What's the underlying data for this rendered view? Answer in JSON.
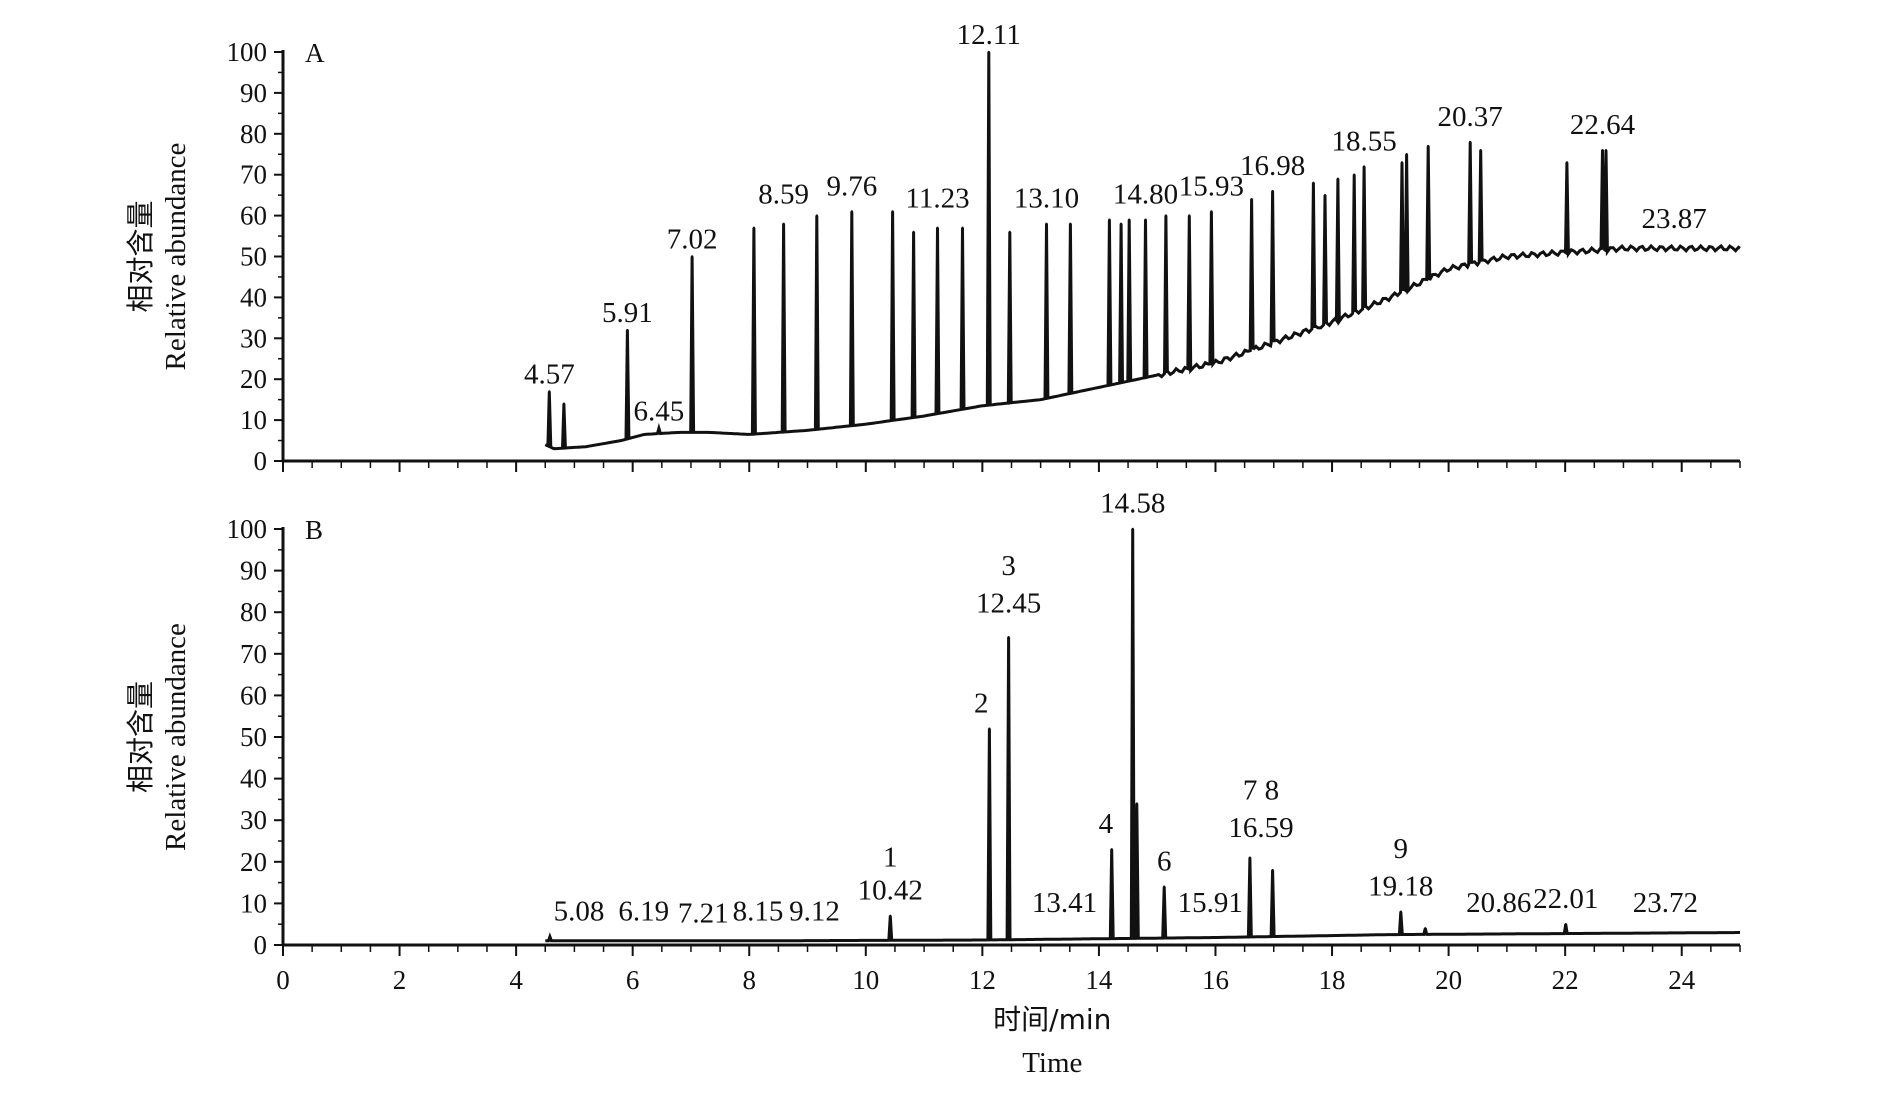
{
  "chart_data": [
    {
      "type": "line",
      "panel_label": "A",
      "ylabel_cn": "相对含量",
      "ylabel": "Relative abundance",
      "xlim": [
        0,
        25
      ],
      "ylim": [
        0,
        100
      ],
      "yticks": [
        0,
        10,
        20,
        30,
        40,
        50,
        60,
        70,
        80,
        90,
        100
      ],
      "baseline": [
        [
          4.5,
          4
        ],
        [
          4.65,
          3
        ],
        [
          5.2,
          3.5
        ],
        [
          5.8,
          5
        ],
        [
          6.2,
          6.5
        ],
        [
          6.8,
          7
        ],
        [
          7.3,
          7
        ],
        [
          8.0,
          6.5
        ],
        [
          8.5,
          7
        ],
        [
          9.0,
          7.5
        ],
        [
          10.0,
          9
        ],
        [
          11.0,
          11
        ],
        [
          12.0,
          13.5
        ],
        [
          13.0,
          15
        ],
        [
          14.0,
          18
        ],
        [
          15.0,
          21
        ],
        [
          16.0,
          24
        ],
        [
          17.0,
          29
        ],
        [
          18.0,
          34
        ],
        [
          19.0,
          40
        ],
        [
          20.0,
          47
        ],
        [
          21.0,
          50
        ],
        [
          22.0,
          51
        ],
        [
          23.0,
          52
        ],
        [
          24.0,
          52
        ],
        [
          25.0,
          52
        ]
      ],
      "peaks": [
        {
          "x": 4.57,
          "y": 17
        },
        {
          "x": 4.82,
          "y": 14
        },
        {
          "x": 5.91,
          "y": 32
        },
        {
          "x": 6.45,
          "y": 8
        },
        {
          "x": 7.02,
          "y": 50
        },
        {
          "x": 8.08,
          "y": 57
        },
        {
          "x": 8.59,
          "y": 58
        },
        {
          "x": 9.16,
          "y": 60
        },
        {
          "x": 9.76,
          "y": 61
        },
        {
          "x": 10.46,
          "y": 61
        },
        {
          "x": 10.82,
          "y": 56
        },
        {
          "x": 11.23,
          "y": 57
        },
        {
          "x": 11.66,
          "y": 57
        },
        {
          "x": 12.11,
          "y": 100
        },
        {
          "x": 12.47,
          "y": 56
        },
        {
          "x": 13.1,
          "y": 58
        },
        {
          "x": 13.51,
          "y": 58
        },
        {
          "x": 14.18,
          "y": 59
        },
        {
          "x": 14.38,
          "y": 58
        },
        {
          "x": 14.52,
          "y": 59
        },
        {
          "x": 14.8,
          "y": 59
        },
        {
          "x": 15.15,
          "y": 60
        },
        {
          "x": 15.55,
          "y": 60
        },
        {
          "x": 15.93,
          "y": 61
        },
        {
          "x": 16.62,
          "y": 64
        },
        {
          "x": 16.98,
          "y": 66
        },
        {
          "x": 17.68,
          "y": 68
        },
        {
          "x": 17.88,
          "y": 65
        },
        {
          "x": 18.1,
          "y": 69
        },
        {
          "x": 18.38,
          "y": 70
        },
        {
          "x": 18.55,
          "y": 72
        },
        {
          "x": 19.2,
          "y": 73
        },
        {
          "x": 19.28,
          "y": 75
        },
        {
          "x": 19.65,
          "y": 77
        },
        {
          "x": 20.37,
          "y": 78
        },
        {
          "x": 20.55,
          "y": 76
        },
        {
          "x": 22.03,
          "y": 73
        },
        {
          "x": 22.64,
          "y": 76
        },
        {
          "x": 22.7,
          "y": 76
        }
      ],
      "labels": [
        {
          "text": "4.57",
          "x": 4.57,
          "y": 17
        },
        {
          "text": "5.91",
          "x": 5.91,
          "y": 32
        },
        {
          "text": "6.45",
          "x": 6.45,
          "y": 8
        },
        {
          "text": "7.02",
          "x": 7.02,
          "y": 50
        },
        {
          "text": "8.59",
          "x": 8.59,
          "y": 61
        },
        {
          "text": "9.76",
          "x": 9.76,
          "y": 63
        },
        {
          "text": "11.23",
          "x": 11.23,
          "y": 60
        },
        {
          "text": "12.11",
          "x": 12.11,
          "y": 100
        },
        {
          "text": "13.10",
          "x": 13.1,
          "y": 60
        },
        {
          "text": "14.80",
          "x": 14.8,
          "y": 61
        },
        {
          "text": "15.93",
          "x": 15.93,
          "y": 63
        },
        {
          "text": "16.98",
          "x": 16.98,
          "y": 68
        },
        {
          "text": "18.55",
          "x": 18.55,
          "y": 74
        },
        {
          "text": "20.37",
          "x": 20.37,
          "y": 80
        },
        {
          "text": "22.64",
          "x": 22.64,
          "y": 78
        },
        {
          "text": "23.87",
          "x": 23.87,
          "y": 55
        }
      ]
    },
    {
      "type": "line",
      "panel_label": "B",
      "ylabel_cn": "相对含量",
      "ylabel": "Relative abundance",
      "xlabel_cn": "时间/min",
      "xlabel": "Time",
      "xlim": [
        0,
        25
      ],
      "ylim": [
        0,
        100
      ],
      "xticks": [
        0,
        2,
        4,
        6,
        8,
        10,
        12,
        14,
        16,
        18,
        20,
        22,
        24
      ],
      "yticks": [
        0,
        10,
        20,
        30,
        40,
        50,
        60,
        70,
        80,
        90,
        100
      ],
      "baseline": [
        [
          4.5,
          1
        ],
        [
          8.0,
          1
        ],
        [
          12.0,
          1.2
        ],
        [
          16.0,
          1.8
        ],
        [
          19.0,
          2.5
        ],
        [
          25.0,
          3
        ]
      ],
      "peaks": [
        {
          "x": 4.58,
          "y": 2
        },
        {
          "x": 10.42,
          "y": 7
        },
        {
          "x": 12.12,
          "y": 52
        },
        {
          "x": 12.45,
          "y": 74
        },
        {
          "x": 14.22,
          "y": 23
        },
        {
          "x": 14.58,
          "y": 100
        },
        {
          "x": 14.65,
          "y": 34
        },
        {
          "x": 15.12,
          "y": 14
        },
        {
          "x": 16.59,
          "y": 21
        },
        {
          "x": 16.98,
          "y": 18
        },
        {
          "x": 19.18,
          "y": 8
        },
        {
          "x": 19.6,
          "y": 4
        },
        {
          "x": 22.01,
          "y": 5
        }
      ],
      "labels": [
        {
          "text": "5.08",
          "x": 5.08,
          "y": 4
        },
        {
          "text": "6.19",
          "x": 6.19,
          "y": 4
        },
        {
          "text": "7.21",
          "x": 7.21,
          "y": 3.5
        },
        {
          "text": "8.15",
          "x": 8.15,
          "y": 4
        },
        {
          "text": "9.12",
          "x": 9.12,
          "y": 4
        },
        {
          "text": "1",
          "x": 10.42,
          "y": 17
        },
        {
          "text": "10.42",
          "x": 10.42,
          "y": 9
        },
        {
          "text": "2",
          "x": 11.98,
          "y": 54
        },
        {
          "text": "3",
          "x": 12.45,
          "y": 87
        },
        {
          "text": "12.45",
          "x": 12.45,
          "y": 78
        },
        {
          "text": "13.41",
          "x": 13.41,
          "y": 6
        },
        {
          "text": "4",
          "x": 14.12,
          "y": 25
        },
        {
          "text": "14.58",
          "x": 14.58,
          "y": 102
        },
        {
          "text": "6",
          "x": 15.12,
          "y": 16
        },
        {
          "text": "15.91",
          "x": 15.91,
          "y": 6
        },
        {
          "text": "7 8",
          "x": 16.78,
          "y": 33
        },
        {
          "text": "16.59",
          "x": 16.78,
          "y": 24
        },
        {
          "text": "9",
          "x": 19.18,
          "y": 19
        },
        {
          "text": "19.18",
          "x": 19.18,
          "y": 10
        },
        {
          "text": "20.86",
          "x": 20.86,
          "y": 6
        },
        {
          "text": "22.01",
          "x": 22.01,
          "y": 7
        },
        {
          "text": "23.72",
          "x": 23.72,
          "y": 6
        }
      ]
    }
  ]
}
